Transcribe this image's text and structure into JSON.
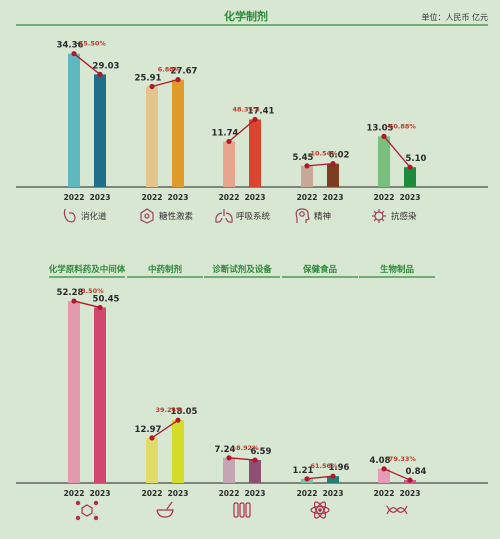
{
  "header": {
    "title": "化学制剂",
    "unit": "单位：人民币 亿元"
  },
  "colors": {
    "accent": "#2f8a3b",
    "trend_line": "#b0182b",
    "digestive": [
      "#5fb7c0",
      "#1f6f8b"
    ],
    "endocrine": [
      "#e3c48c",
      "#e09b2d"
    ],
    "respiratory": [
      "#e8a58e",
      "#d9452f"
    ],
    "mental": [
      "#c9a796",
      "#7b3f1f"
    ],
    "anti_infective": [
      "#79c07e",
      "#1d8a3c"
    ],
    "api": [
      "#e39aae",
      "#d2476f"
    ],
    "tcm": [
      "#e0db6a",
      "#d4dc2b"
    ],
    "diagnostic": [
      "#c3a5b4",
      "#8e4f74"
    ],
    "health_food": [
      "#7fbfae",
      "#1f7f78"
    ],
    "bio": [
      "#e49ab8",
      "#c95a8a"
    ]
  },
  "chart_data": [
    {
      "type": "bar",
      "title": "化学制剂",
      "unit": "单位：人民币 亿元",
      "categories": [
        "2022",
        "2023"
      ],
      "groups": [
        {
          "name": "消化道",
          "icon": "stomach-icon",
          "values": [
            34.36,
            29.03
          ],
          "value_labels": [
            "34.36",
            "29.03"
          ],
          "change": "-15.50%"
        },
        {
          "name": "糖性激素",
          "icon": "molecule-icon",
          "values": [
            25.91,
            27.67
          ],
          "value_labels": [
            "25.91",
            "27.67"
          ],
          "change": "6.80%"
        },
        {
          "name": "呼吸系统",
          "icon": "lungs-icon",
          "values": [
            11.74,
            17.41
          ],
          "value_labels": [
            "11.74",
            "17.41"
          ],
          "change": "48.35%"
        },
        {
          "name": "精神",
          "icon": "head-brain-icon",
          "values": [
            5.45,
            6.02
          ],
          "value_labels": [
            "5.45",
            "6.02"
          ],
          "change": "10.54%"
        },
        {
          "name": "抗感染",
          "icon": "virus-icon",
          "values": [
            13.05,
            5.1
          ],
          "value_labels": [
            "13.05",
            "5.10"
          ],
          "change": "-60.88%"
        }
      ]
    },
    {
      "type": "bar",
      "categories": [
        "2022",
        "2023"
      ],
      "groups": [
        {
          "name": "化学原料药及中间体",
          "icon": "chemical-structure-icon",
          "values": [
            52.28,
            50.45
          ],
          "value_labels": [
            "52.28",
            "50.45"
          ],
          "change": "-3.50%"
        },
        {
          "name": "中药制剂",
          "icon": "mortar-pestle-icon",
          "values": [
            12.97,
            18.05
          ],
          "value_labels": [
            "12.97",
            "18.05"
          ],
          "change": "39.24%"
        },
        {
          "name": "诊断试剂及设备",
          "icon": "test-tubes-icon",
          "values": [
            7.24,
            6.59
          ],
          "value_labels": [
            "7.24",
            "6.59"
          ],
          "change": "-8.92%"
        },
        {
          "name": "保健食品",
          "icon": "atom-icon",
          "values": [
            1.21,
            1.96
          ],
          "value_labels": [
            "1.21",
            "1.96"
          ],
          "change": "61.56%"
        },
        {
          "name": "生物制品",
          "icon": "dna-icon",
          "values": [
            4.08,
            0.84
          ],
          "value_labels": [
            "4.08",
            "0.84"
          ],
          "change": "-79.33%"
        }
      ]
    }
  ]
}
